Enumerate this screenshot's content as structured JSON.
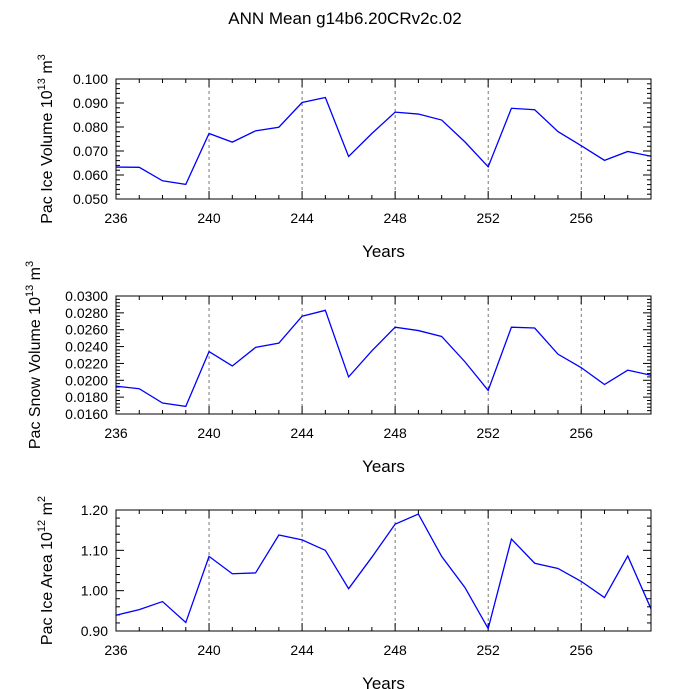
{
  "title": "ANN Mean g14b6.20CRv2c.02",
  "colors": {
    "line": "#0000ff",
    "axis": "#000000",
    "grid": "#555555"
  },
  "chart_data": [
    {
      "type": "line",
      "ylabel": {
        "main": "Pac Ice Volume 10",
        "exp": "13",
        "unit": " m",
        "unit_exp": "3"
      },
      "xlabel": "Years",
      "xlim": [
        236,
        259
      ],
      "ylim": [
        0.05,
        0.1
      ],
      "xticks": [
        "236",
        "240",
        "244",
        "248",
        "252",
        "256"
      ],
      "yticks": [
        "0.050",
        "0.060",
        "0.070",
        "0.080",
        "0.090",
        "0.100"
      ],
      "x": [
        236,
        237,
        238,
        239,
        240,
        241,
        242,
        243,
        244,
        245,
        246,
        247,
        248,
        249,
        250,
        251,
        252,
        253,
        254,
        255,
        256,
        257,
        258,
        259
      ],
      "values": [
        0.0633,
        0.0632,
        0.0576,
        0.0561,
        0.0773,
        0.0737,
        0.0784,
        0.0799,
        0.0902,
        0.0923,
        0.0677,
        0.0773,
        0.0862,
        0.0854,
        0.0829,
        0.0738,
        0.0634,
        0.0878,
        0.0872,
        0.0781,
        0.0722,
        0.0661,
        0.0698,
        0.0678
      ]
    },
    {
      "type": "line",
      "ylabel": {
        "main": "Pac Snow Volume 10",
        "exp": "13",
        "unit": " m",
        "unit_exp": "3"
      },
      "xlabel": "Years",
      "xlim": [
        236,
        259
      ],
      "ylim": [
        0.016,
        0.03
      ],
      "xticks": [
        "236",
        "240",
        "244",
        "248",
        "252",
        "256"
      ],
      "yticks": [
        "0.0160",
        "0.0180",
        "0.0200",
        "0.0220",
        "0.0240",
        "0.0260",
        "0.0280",
        "0.0300"
      ],
      "x": [
        236,
        237,
        238,
        239,
        240,
        241,
        242,
        243,
        244,
        245,
        246,
        247,
        248,
        249,
        250,
        251,
        252,
        253,
        254,
        255,
        256,
        257,
        258,
        259
      ],
      "values": [
        0.0193,
        0.019,
        0.0173,
        0.0169,
        0.0234,
        0.0217,
        0.0239,
        0.0244,
        0.0276,
        0.0283,
        0.0204,
        0.0235,
        0.0263,
        0.0259,
        0.0252,
        0.0222,
        0.0188,
        0.0263,
        0.0262,
        0.0231,
        0.0215,
        0.0195,
        0.0212,
        0.0206
      ]
    },
    {
      "type": "line",
      "ylabel": {
        "main": "Pac Ice Area 10",
        "exp": "12",
        "unit": " m",
        "unit_exp": "2"
      },
      "xlabel": "Years",
      "xlim": [
        236,
        259
      ],
      "ylim": [
        0.9,
        1.2
      ],
      "xticks": [
        "236",
        "240",
        "244",
        "248",
        "252",
        "256"
      ],
      "yticks": [
        "0.90",
        "1.00",
        "1.10",
        "1.20"
      ],
      "x": [
        236,
        237,
        238,
        239,
        240,
        241,
        242,
        243,
        244,
        245,
        246,
        247,
        248,
        249,
        250,
        251,
        252,
        253,
        254,
        255,
        256,
        257,
        258,
        259
      ],
      "values": [
        0.939,
        0.953,
        0.973,
        0.921,
        1.085,
        1.042,
        1.044,
        1.138,
        1.126,
        1.1,
        1.005,
        1.083,
        1.165,
        1.19,
        1.085,
        1.008,
        0.906,
        1.128,
        1.068,
        1.055,
        1.023,
        0.983,
        1.086,
        0.955
      ]
    }
  ]
}
